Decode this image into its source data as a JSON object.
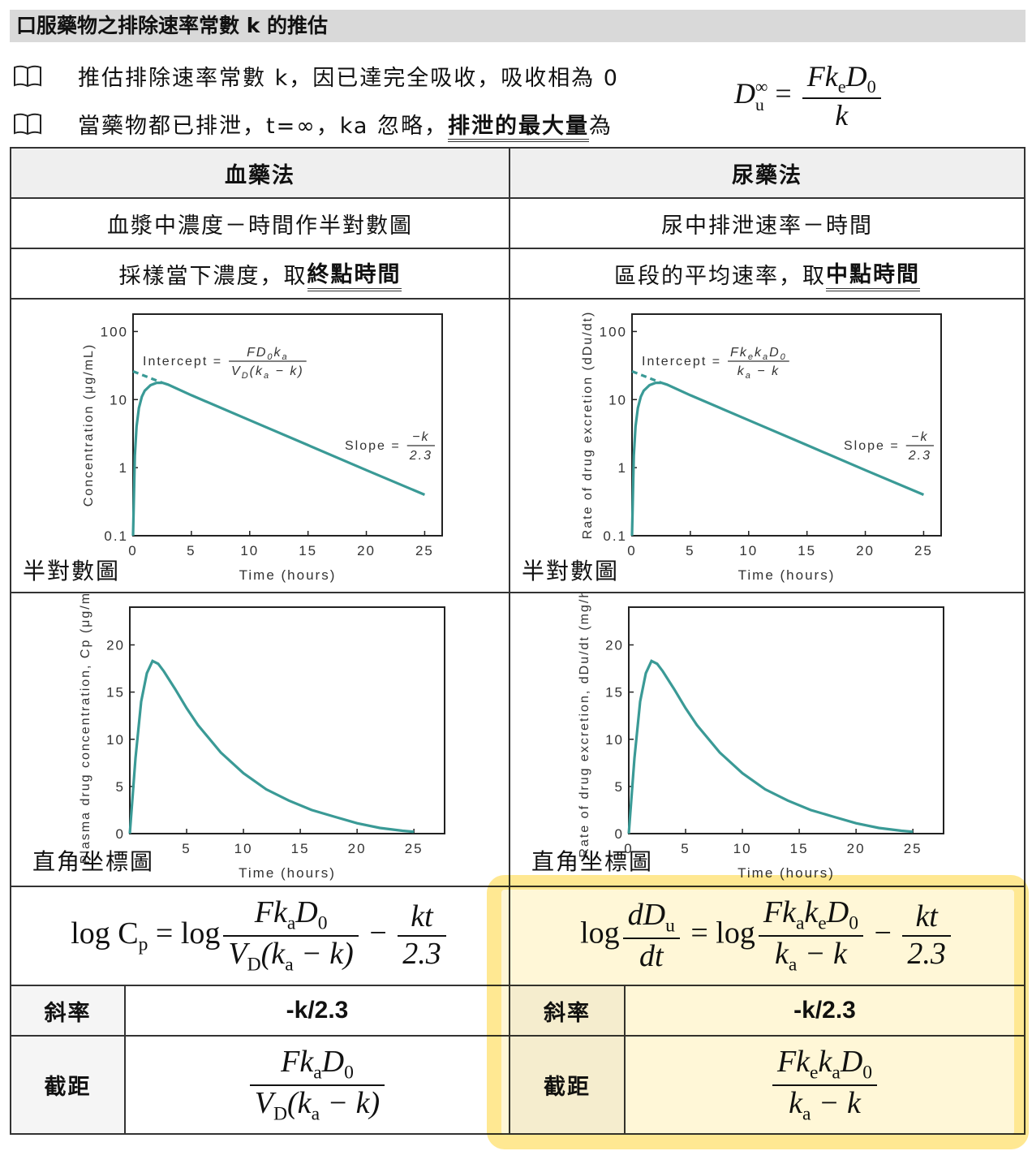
{
  "title": "口服藥物之排除速率常數 k 的推估",
  "bullets": [
    [
      "推估排除速率常數 k，因已達完全吸收，吸收相為 0"
    ],
    [
      "當藥物都已排泄，t=∞，ka 忽略，",
      "排泄的最大量",
      "為"
    ]
  ],
  "max_formula": [
    {
      "base": "D",
      "sub": "u",
      "sup": "∞"
    },
    [
      " = "
    ],
    {
      "num": [
        "Fk",
        "e",
        "D",
        "0"
      ],
      "den": [
        "k"
      ]
    }
  ],
  "table": {
    "headers": [
      "血藥法",
      "尿藥法"
    ],
    "plot_titles": [
      "血漿中濃度－時間作半對數圖",
      "尿中排泄速率－時間"
    ],
    "sampling": [
      [
        "採樣當下濃度，取",
        "終點時間"
      ],
      [
        "區段的平均速率，取",
        "中點時間"
      ]
    ],
    "charts": [
      {
        "type": "line",
        "caption": "半對數圖",
        "xlabel": "Time (hours)",
        "ylabel": "Concentration (μg/mL)",
        "log_y": true,
        "color": "#3a9a96",
        "x": [
          0,
          0.15,
          0.3,
          0.5,
          0.75,
          1,
          1.5,
          2,
          2.5,
          3,
          5,
          10,
          15,
          20,
          25
        ],
        "series": [
          {
            "values": [
              0.1,
              1.5,
              4,
              7.5,
              11,
              13.5,
              16.3,
              17.6,
              17.7,
              16.6,
              11.6,
              4.98,
              2.14,
              0.92,
              0.4
            ]
          },
          {
            "x": [
              0,
              2.5
            ],
            "values": [
              26,
              17.7
            ],
            "dashed": true
          }
        ],
        "xlim": [
          0,
          26.5
        ],
        "xticks": [
          0,
          5,
          10,
          15,
          20,
          25
        ],
        "ylim": [
          0.1,
          180
        ],
        "yticks": [
          0.1,
          1,
          10,
          100
        ],
        "intercept": {
          "label": "Intercept =",
          "num": [
            "FD",
            "0",
            "k",
            "a"
          ],
          "den": [
            "V",
            "D",
            "(k",
            "a",
            " − k)"
          ]
        },
        "slope": {
          "label": "Slope =",
          "num": [
            "−k"
          ],
          "den": [
            "2.3"
          ]
        }
      },
      {
        "type": "line",
        "caption": "半對數圖",
        "xlabel": "Time (hours)",
        "ylabel": "Rate of drug excretion (dDu/dt)",
        "log_y": true,
        "color": "#3a9a96",
        "x": [
          0,
          0.15,
          0.3,
          0.5,
          0.75,
          1,
          1.5,
          2,
          2.5,
          3,
          5,
          10,
          15,
          20,
          25
        ],
        "series": [
          {
            "values": [
              0.1,
              1.5,
              4,
              7.5,
              11,
              13.5,
              16.3,
              17.6,
              17.7,
              16.6,
              11.6,
              4.98,
              2.14,
              0.92,
              0.4
            ]
          },
          {
            "x": [
              0,
              2.5
            ],
            "values": [
              26,
              17.7
            ],
            "dashed": true
          }
        ],
        "xlim": [
          0,
          26.5
        ],
        "xticks": [
          0,
          5,
          10,
          15,
          20,
          25
        ],
        "ylim": [
          0.1,
          180
        ],
        "yticks": [
          0.1,
          1,
          10,
          100
        ],
        "intercept": {
          "label": "Intercept =",
          "num": [
            "Fk",
            "e",
            "k",
            "a",
            "D",
            "0"
          ],
          "den": [
            "k",
            "a",
            " − k"
          ]
        },
        "slope": {
          "label": "Slope =",
          "num": [
            "−k"
          ],
          "den": [
            "2.3"
          ]
        }
      },
      {
        "type": "line",
        "caption": "直角坐標圖",
        "xlabel": "Time (hours)",
        "ylabel": "Plasma drug concentration, Cp (μg/mL)",
        "log_y": false,
        "color": "#3a9a96",
        "x": [
          0,
          0.5,
          1,
          1.5,
          2,
          2.5,
          3,
          4,
          5,
          6,
          8,
          10,
          12,
          14,
          16,
          18,
          20,
          22,
          24,
          25
        ],
        "series": [
          {
            "values": [
              0,
              8,
              14,
              17,
              18.3,
              18,
              17.2,
              15.3,
              13.3,
              11.5,
              8.6,
              6.4,
              4.7,
              3.5,
              2.5,
              1.8,
              1.1,
              0.6,
              0.3,
              0.2
            ]
          }
        ],
        "xlim": [
          0,
          27.7
        ],
        "xticks": [
          5,
          10,
          15,
          20,
          25
        ],
        "ylim": [
          0,
          24
        ],
        "yticks": [
          0,
          5,
          10,
          15,
          20
        ]
      },
      {
        "type": "line",
        "caption": "直角坐標圖",
        "xlabel": "Time (hours)",
        "ylabel": "Rate of drug excretion, dDu/dt (mg/h)",
        "log_y": false,
        "color": "#3a9a96",
        "x": [
          0,
          0.5,
          1,
          1.5,
          2,
          2.5,
          3,
          4,
          5,
          6,
          8,
          10,
          12,
          14,
          16,
          18,
          20,
          22,
          24,
          25
        ],
        "series": [
          {
            "values": [
              0,
              8,
              14,
              17,
              18.3,
              18,
              17.2,
              15.3,
              13.3,
              11.5,
              8.6,
              6.4,
              4.7,
              3.5,
              2.5,
              1.8,
              1.1,
              0.6,
              0.3,
              0.2
            ]
          }
        ],
        "xlim": [
          0,
          27.7
        ],
        "xticks": [
          0,
          5,
          10,
          15,
          20,
          25
        ],
        "ylim": [
          0,
          24
        ],
        "yticks": [
          0,
          5,
          10,
          15,
          20
        ]
      }
    ],
    "formulas": [
      [
        [
          "log C",
          "p",
          " = log"
        ],
        {
          "num": [
            "Fk",
            "a",
            "D",
            "0"
          ],
          "den": [
            "V",
            "D",
            "(k",
            "a",
            " − k)"
          ]
        },
        [
          " − "
        ],
        {
          "num": [
            "kt"
          ],
          "den": [
            "2.3"
          ]
        }
      ],
      [
        [
          "log"
        ],
        {
          "num": [
            "dD",
            "u"
          ],
          "den": [
            "dt"
          ]
        },
        [
          " = log"
        ],
        {
          "num": [
            "Fk",
            "a",
            "k",
            "e",
            "D",
            "0"
          ],
          "den": [
            "k",
            "a",
            " − k"
          ]
        },
        [
          " − "
        ],
        {
          "num": [
            "kt"
          ],
          "den": [
            "2.3"
          ]
        }
      ]
    ],
    "slope_label": "斜率",
    "slopes": [
      "-k/2.3",
      "-k/2.3"
    ],
    "intercept_label": "截距",
    "intercepts": [
      {
        "num": [
          "Fk",
          "a",
          "D",
          "0"
        ],
        "den": [
          "V",
          "D",
          "(k",
          "a",
          " − k)"
        ]
      },
      {
        "num": [
          "Fk",
          "e",
          "k",
          "a",
          "D",
          "0"
        ],
        "den": [
          "k",
          "a",
          " − k"
        ]
      }
    ]
  }
}
